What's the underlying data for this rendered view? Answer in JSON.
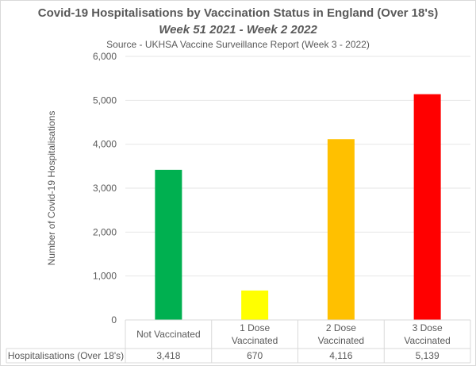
{
  "chart_data": {
    "type": "bar",
    "title": "Covid-19 Hospitalisations by Vaccination Status in England (Over 18's)",
    "subtitle": "Week 51 2021 - Week 2 2022",
    "source": "Source - UKHSA Vaccine Surveillance Report (Week 3 - 2022)",
    "xlabel": "",
    "ylabel": "Number of Covid-19 Hospitalisations",
    "ylim": [
      0,
      6000
    ],
    "yticks": [
      0,
      1000,
      2000,
      3000,
      4000,
      5000,
      6000
    ],
    "ytick_labels": [
      "0",
      "1,000",
      "2,000",
      "3,000",
      "4,000",
      "5,000",
      "6,000"
    ],
    "grid": true,
    "categories": [
      "Not Vaccinated",
      "1 Dose Vaccinated",
      "2 Dose Vaccinated",
      "3 Dose Vaccinated"
    ],
    "category_lines": [
      [
        "Not Vaccinated"
      ],
      [
        "1 Dose",
        "Vaccinated"
      ],
      [
        "2 Dose",
        "Vaccinated"
      ],
      [
        "3 Dose",
        "Vaccinated"
      ]
    ],
    "series": [
      {
        "name": "Hospitalisations (Over 18's)",
        "values": [
          3418,
          670,
          4116,
          5139
        ],
        "value_labels": [
          "3,418",
          "670",
          "4,116",
          "5,139"
        ]
      }
    ],
    "colors": [
      "#00B050",
      "#FFFF00",
      "#FFC000",
      "#FF0000"
    ],
    "data_table": true
  }
}
